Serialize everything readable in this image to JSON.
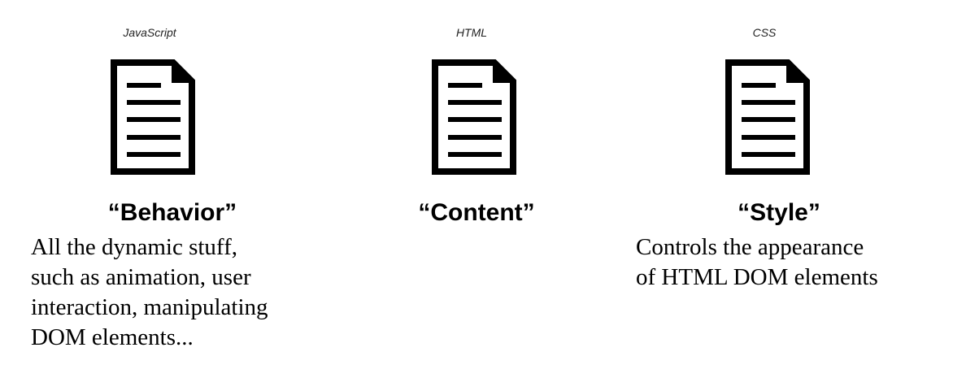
{
  "diagram": {
    "columns": [
      {
        "id": "js",
        "label": "JavaScript",
        "icon": "document-icon",
        "heading": "“Behavior”",
        "description_lines": [
          "All the dynamic stuff,",
          "such as animation, user",
          "interaction, manipulating",
          "DOM elements..."
        ]
      },
      {
        "id": "html",
        "label": "HTML",
        "icon": "document-icon",
        "heading": "“Content”",
        "description_lines": []
      },
      {
        "id": "css",
        "label": "CSS",
        "icon": "document-icon",
        "heading": "“Style”",
        "description_lines": [
          "Controls the appearance",
          "of HTML DOM elements"
        ]
      }
    ],
    "colors": {
      "icon": "#000000",
      "text": "#000000",
      "background": "#ffffff"
    }
  }
}
